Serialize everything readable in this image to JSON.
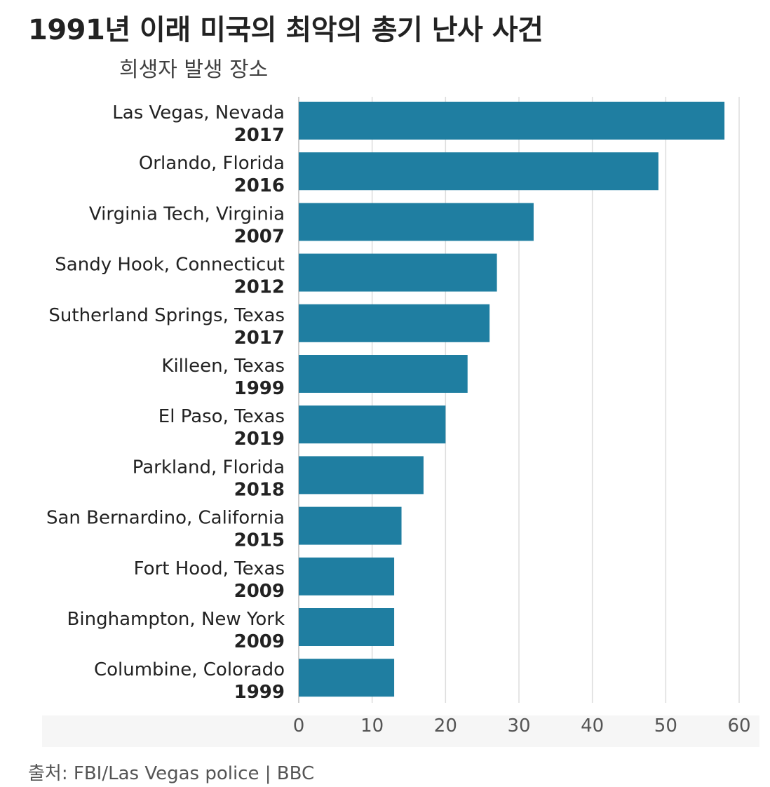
{
  "title": "1991년 이래 미국의 최악의 총기 난사 사건",
  "subtitle": "희생자 발생 장소",
  "source": "출처: FBI/Las Vegas police | BBC",
  "colors": {
    "bar": "#1f7ea1",
    "grid": "#dddddd",
    "text": "#222222",
    "axis_text": "#555555"
  },
  "chart_data": {
    "type": "bar",
    "orientation": "horizontal",
    "title": "1991년 이래 미국의 최악의 총기 난사 사건",
    "subtitle": "희생자 발생 장소",
    "categories": [
      {
        "place": "Las Vegas, Nevada",
        "year": "2017"
      },
      {
        "place": "Orlando, Florida",
        "year": "2016"
      },
      {
        "place": "Virginia Tech, Virginia",
        "year": "2007"
      },
      {
        "place": "Sandy Hook, Connecticut",
        "year": "2012"
      },
      {
        "place": "Sutherland Springs, Texas",
        "year": "2017"
      },
      {
        "place": "Killeen, Texas",
        "year": "1999"
      },
      {
        "place": "El Paso, Texas",
        "year": "2019"
      },
      {
        "place": "Parkland, Florida",
        "year": "2018"
      },
      {
        "place": "San Bernardino, California",
        "year": "2015"
      },
      {
        "place": "Fort Hood, Texas",
        "year": "2009"
      },
      {
        "place": "Binghampton, New York",
        "year": "2009"
      },
      {
        "place": "Columbine, Colorado",
        "year": "1999"
      }
    ],
    "values": [
      58,
      49,
      32,
      27,
      26,
      23,
      20,
      17,
      14,
      13,
      13,
      13
    ],
    "xlim": [
      0,
      60
    ],
    "xticks": [
      0,
      10,
      20,
      30,
      40,
      50,
      60
    ],
    "grid": true
  }
}
